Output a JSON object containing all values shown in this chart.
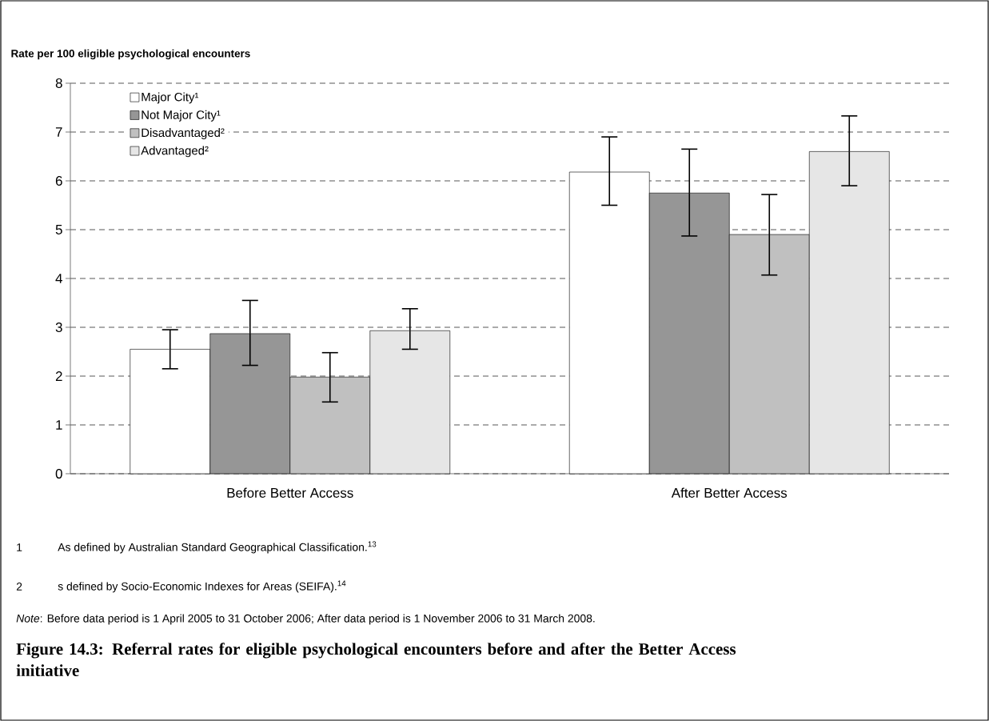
{
  "chart_data": {
    "type": "bar",
    "title": "Figure 14.3: Referral rates for eligible psychological encounters before and after the Better Access initiative",
    "ylabel": "Rate per 100 eligible psychological encounters",
    "categories": [
      "Before Better Access",
      "After Better Access"
    ],
    "series": [
      {
        "name": "Major City¹",
        "color": "#ffffff",
        "values": [
          2.55,
          6.18
        ],
        "errors": [
          [
            2.15,
            2.95
          ],
          [
            5.5,
            6.9
          ]
        ]
      },
      {
        "name": "Not Major City¹",
        "color": "#969696",
        "values": [
          2.87,
          5.75
        ],
        "errors": [
          [
            2.22,
            3.55
          ],
          [
            4.87,
            6.65
          ]
        ]
      },
      {
        "name": "Disadvantaged²",
        "color": "#c0c0c0",
        "values": [
          1.98,
          4.9
        ],
        "errors": [
          [
            1.47,
            2.48
          ],
          [
            4.07,
            5.72
          ]
        ]
      },
      {
        "name": "Advantaged²",
        "color": "#e6e6e6",
        "values": [
          2.93,
          6.6
        ],
        "errors": [
          [
            2.55,
            3.38
          ],
          [
            5.9,
            7.33
          ]
        ]
      }
    ],
    "ylim": [
      0,
      8
    ],
    "yticks": [
      0,
      1,
      2,
      3,
      4,
      5,
      6,
      7,
      8
    ],
    "grid": "y",
    "legend": "top left",
    "annotations": [
      "1",
      "As defined by Australian Standard Geographical Classification.$^{13}$",
      "2",
      "s defined by Socio-Economic Indexes for Areas (SEIFA).$^{14}$",
      "*Note*: Before data period is 1 April 2005 to 31 October 2006; After data period is 1 November 2006 to 31 March 2008."
    ]
  }
}
